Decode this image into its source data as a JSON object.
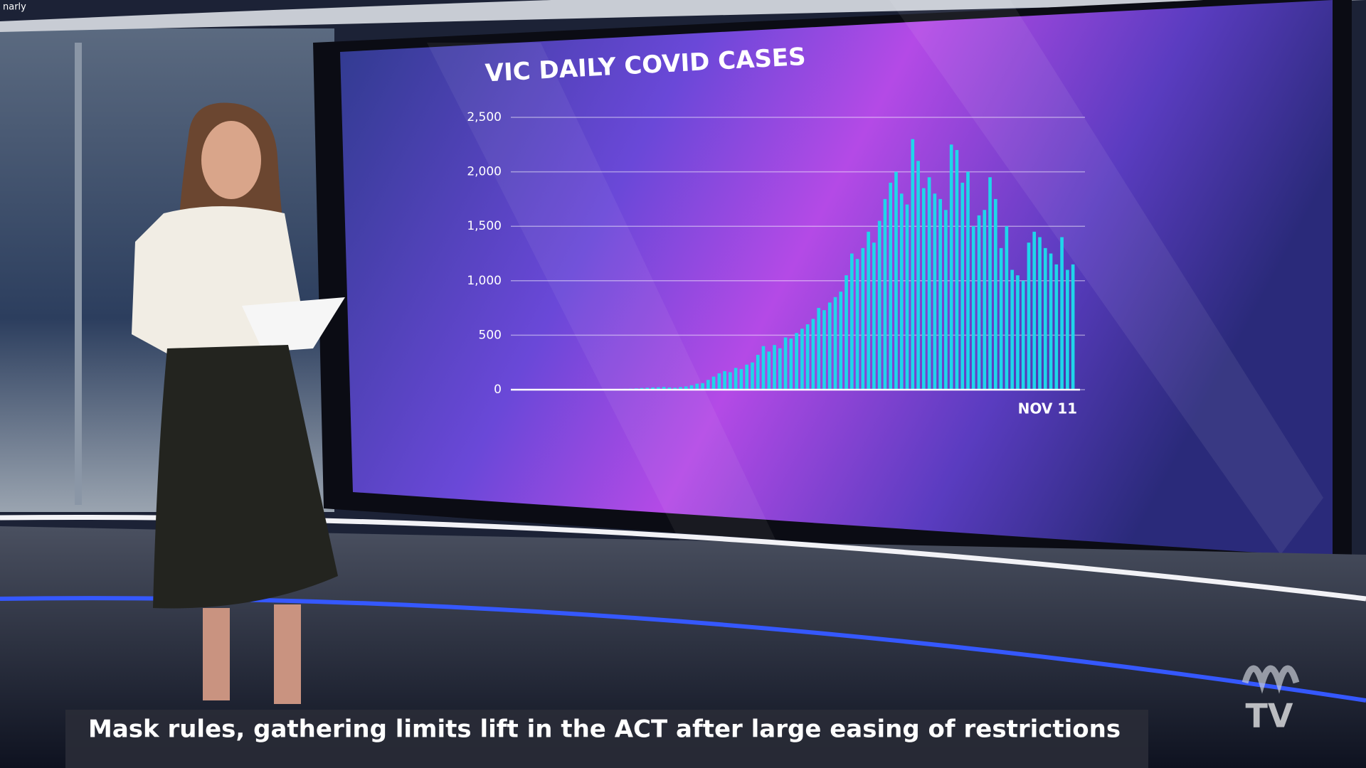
{
  "corner_text": "narly",
  "caption": "Mask rules, gathering limits lift in the ACT after large easing of restrictions",
  "logo_text": "TV",
  "chart_data": {
    "type": "bar",
    "title": "VIC DAILY COVID CASES",
    "categories": [
      null,
      null,
      null,
      null,
      null,
      null,
      null,
      null,
      null,
      null,
      null,
      null,
      null,
      null,
      null,
      null,
      null,
      null,
      null,
      null,
      null,
      null,
      null,
      null,
      null,
      null,
      null,
      null,
      null,
      null,
      null,
      null,
      null,
      null,
      null,
      null,
      null,
      null,
      null,
      null,
      null,
      null,
      null,
      null,
      null,
      null,
      null,
      null,
      null,
      null,
      null,
      null,
      null,
      null,
      null,
      null,
      null,
      null,
      null,
      null,
      null,
      null,
      null,
      null,
      null,
      null,
      null,
      null,
      null,
      null,
      null,
      null,
      null,
      null,
      null,
      null,
      null,
      null,
      null,
      null,
      null,
      null,
      null,
      null,
      null,
      null,
      null,
      null,
      null,
      null,
      null,
      null,
      null,
      null,
      null,
      null,
      null,
      null,
      null,
      "NOV 11"
    ],
    "values": [
      0,
      0,
      1,
      2,
      0,
      1,
      0,
      2,
      3,
      1,
      2,
      4,
      3,
      2,
      5,
      4,
      6,
      5,
      8,
      10,
      12,
      15,
      18,
      20,
      22,
      25,
      20,
      18,
      24,
      30,
      40,
      55,
      60,
      90,
      120,
      150,
      170,
      160,
      200,
      190,
      230,
      250,
      320,
      400,
      350,
      410,
      380,
      480,
      470,
      520,
      560,
      600,
      650,
      750,
      730,
      800,
      850,
      900,
      1050,
      1250,
      1200,
      1300,
      1450,
      1350,
      1550,
      1750,
      1900,
      2000,
      1800,
      1700,
      2300,
      2100,
      1850,
      1950,
      1800,
      1750,
      1650,
      2250,
      2200,
      1900,
      2000,
      1500,
      1600,
      1650,
      1950,
      1750,
      1300,
      1500,
      1100,
      1050,
      1000,
      1350,
      1450,
      1400,
      1300,
      1250,
      1150,
      1400,
      1100,
      1150
    ],
    "color": "#1fd6ea",
    "ylim": [
      0,
      2500
    ],
    "yticks": [
      0,
      500,
      {
        "value": 1000,
        "label": "1,000"
      },
      {
        "value": 1500,
        "label": "1,500"
      },
      {
        "value": 2000,
        "label": "2,000"
      },
      {
        "value": 2500,
        "label": "2,500"
      }
    ],
    "grid": true
  }
}
